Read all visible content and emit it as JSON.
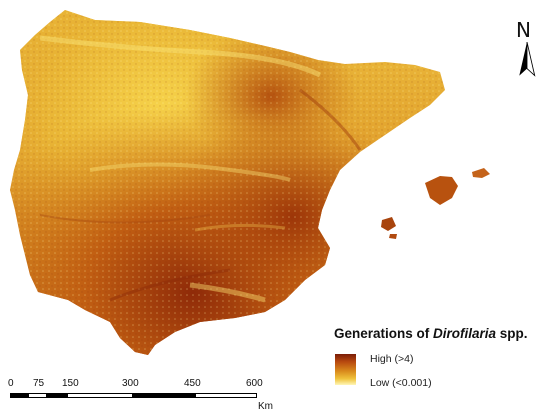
{
  "legend": {
    "title_prefix": "Generations of ",
    "title_genus": "Dirofilaria",
    "title_suffix": " spp.",
    "high_label": "High (>4)",
    "low_label": "Low (<0.001)",
    "high_color": "#7a1c06",
    "low_color": "#fff6b8"
  },
  "north_arrow": {
    "letter": "N"
  },
  "scale_bar": {
    "ticks": [
      "0",
      "75",
      "150",
      "300",
      "450",
      "600"
    ],
    "unit": "Km"
  },
  "map": {
    "icon": "heat-map-raster",
    "palette": [
      "#7a1c06",
      "#b8490f",
      "#d98a1c",
      "#f0c33c",
      "#fff6b8"
    ]
  }
}
